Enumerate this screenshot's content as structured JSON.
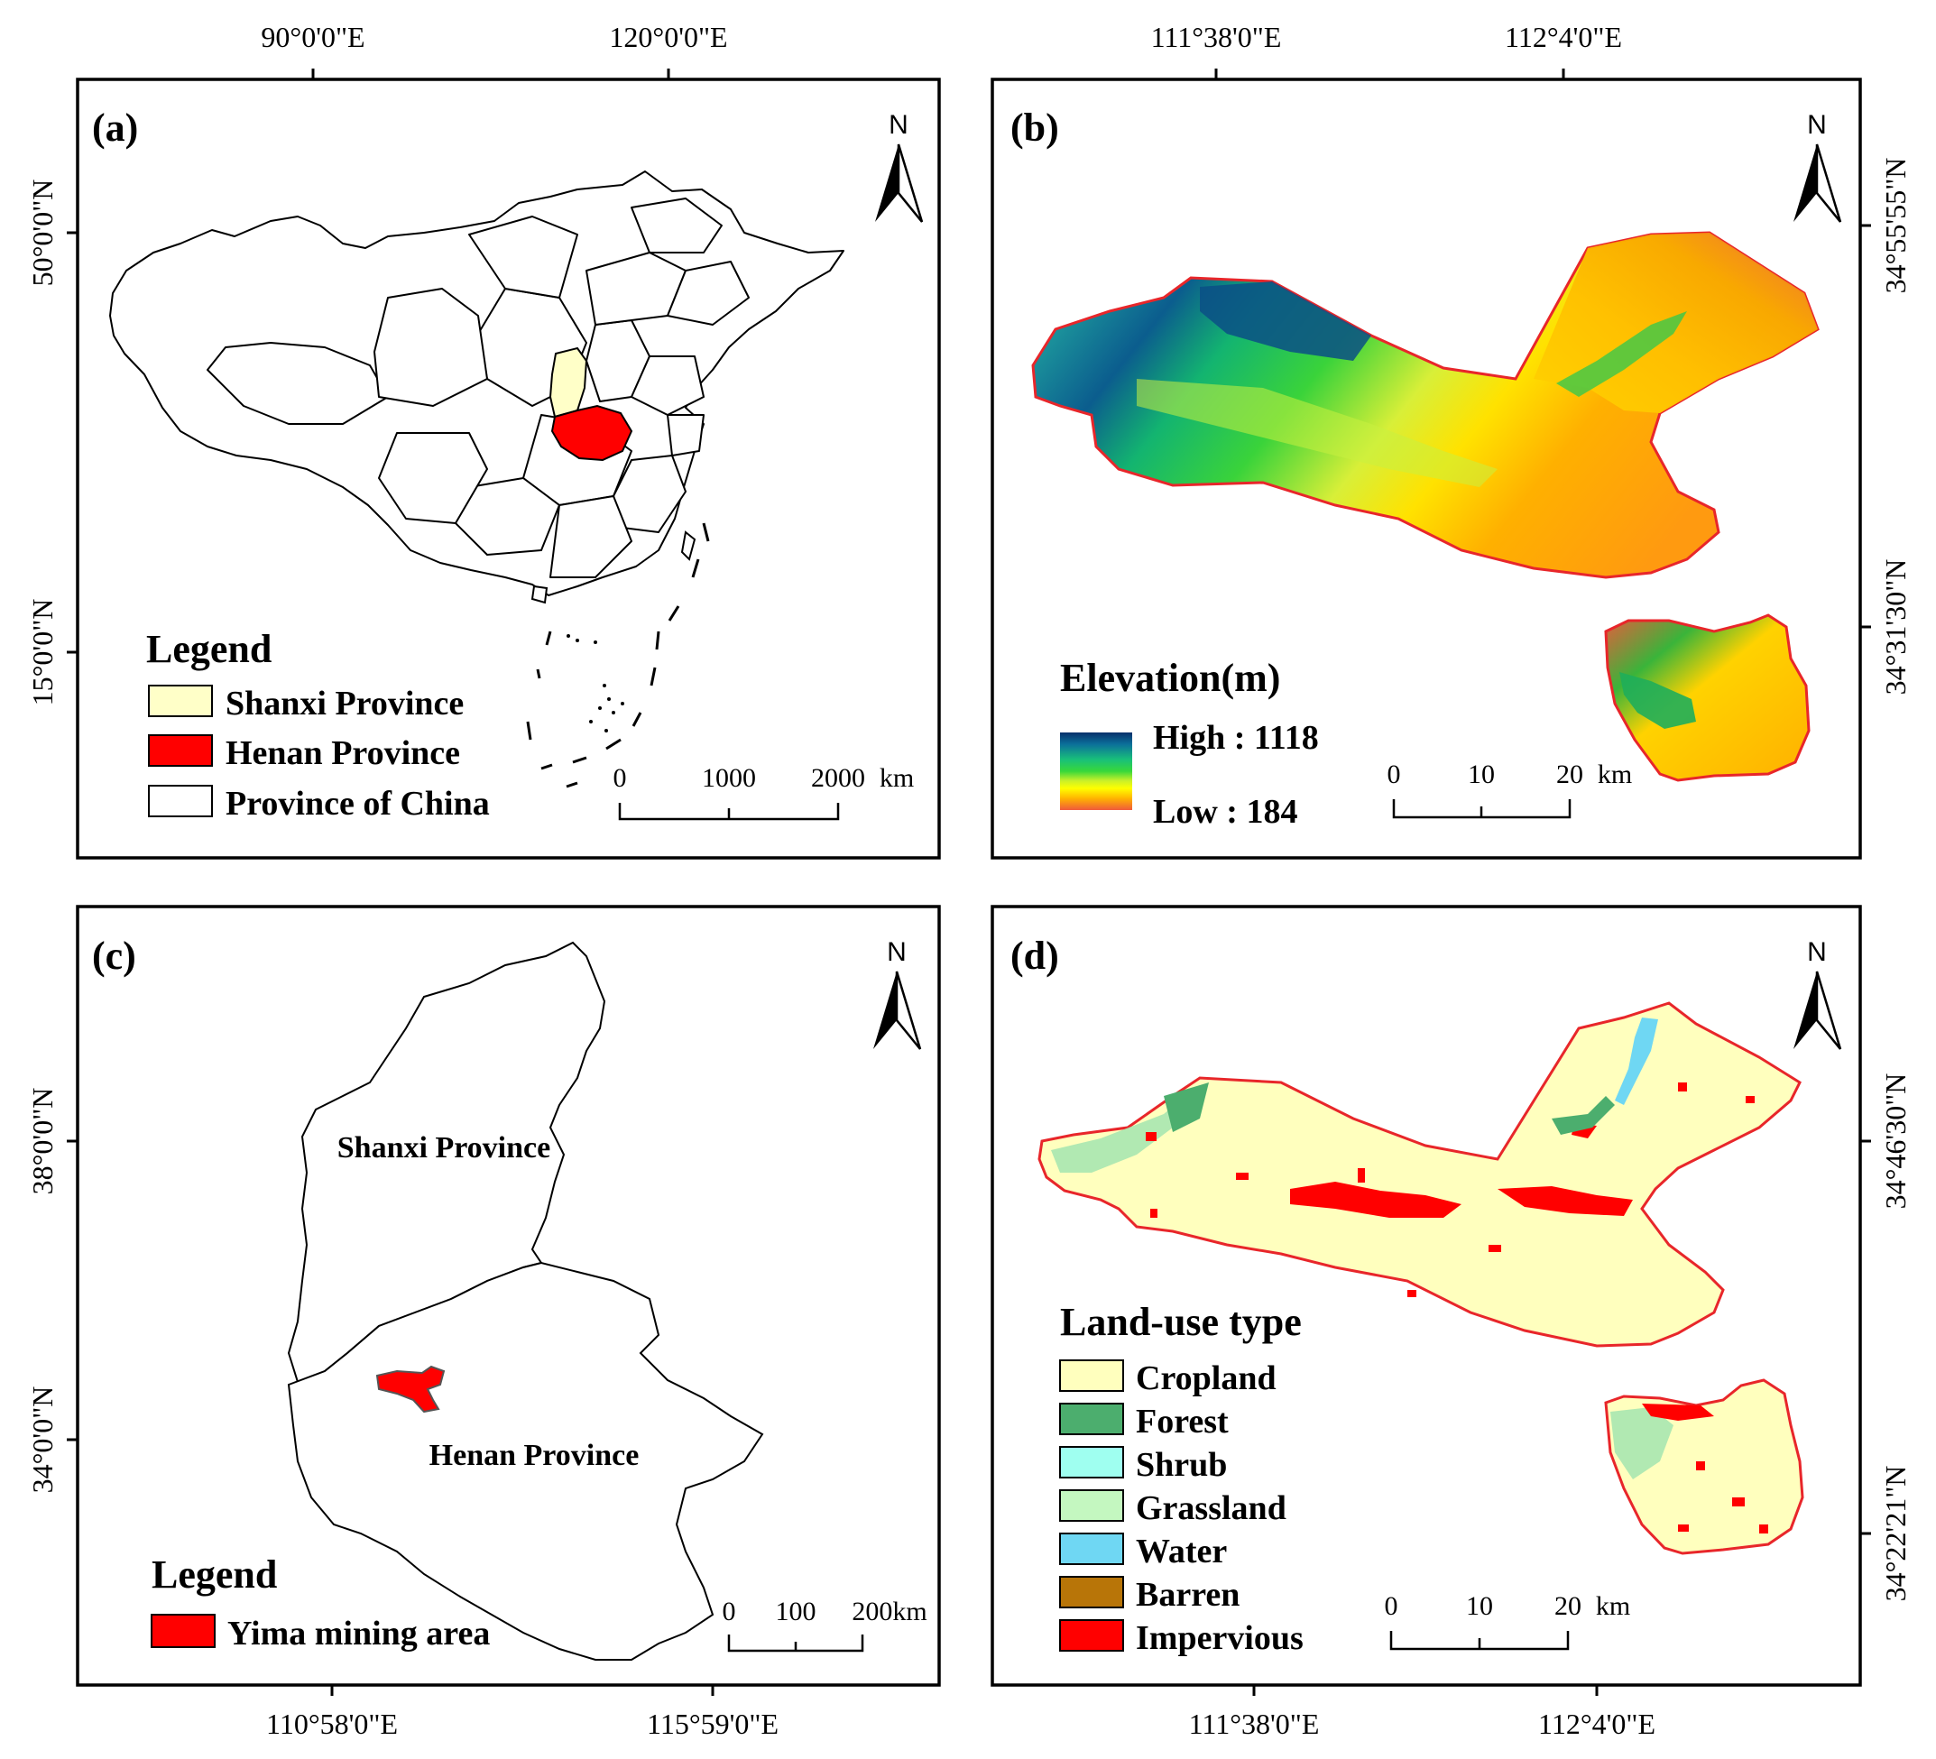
{
  "colors": {
    "shanxi": "#ffffc8",
    "henan": "#ff0000",
    "province": "#ffffff",
    "outline": "#e8262a",
    "cropland": "#ffffbe",
    "forest": "#4cae6e",
    "shrub": "#9ffff0",
    "grassland": "#c4f7c0",
    "water": "#6fd7f3",
    "barren": "#b87508",
    "impervious": "#ff0000"
  },
  "panel_a": {
    "label": "(a)",
    "north": "N",
    "top_ticks": [
      "90°0'0\"E",
      "120°0'0\"E"
    ],
    "left_ticks": [
      "50°0'0\"N",
      "15°0'0\"N"
    ],
    "legend": {
      "title": "Legend",
      "items": [
        {
          "label": "Shanxi Province",
          "color": "#ffffc8"
        },
        {
          "label": "Henan Province",
          "color": "#ff0000"
        },
        {
          "label": "Province of China",
          "color": "#ffffff"
        }
      ]
    },
    "scale": {
      "ticks": [
        "0",
        "1000",
        "2000"
      ],
      "unit": "km"
    }
  },
  "panel_b": {
    "label": "(b)",
    "north": "N",
    "top_ticks": [
      "111°38'0\"E",
      "112°4'0\"E"
    ],
    "right_ticks": [
      "34°55'55\"N",
      "34°31'30\"N"
    ],
    "legend": {
      "title": "Elevation(m)",
      "high": "High : 1118",
      "low": "Low : 184",
      "ramp": [
        "#08306b",
        "#0b7a9a",
        "#1ec07a",
        "#39d83a",
        "#b8f02a",
        "#ffff00",
        "#ffc000",
        "#ff7a1a",
        "#f05a3c"
      ]
    },
    "scale": {
      "ticks": [
        "0",
        "10",
        "20"
      ],
      "unit": "km"
    }
  },
  "panel_c": {
    "label": "(c)",
    "north": "N",
    "left_ticks": [
      "38°0'0\"N",
      "34°0'0\"N"
    ],
    "bottom_ticks": [
      "110°58'0\"E",
      "115°59'0\"E"
    ],
    "shanxi_label": "Shanxi Province",
    "henan_label": "Henan Province",
    "legend": {
      "title": "Legend",
      "items": [
        {
          "label": "Yima mining area",
          "color": "#ff0000"
        }
      ]
    },
    "scale": {
      "ticks": [
        "0",
        "100",
        "200km"
      ]
    }
  },
  "panel_d": {
    "label": "(d)",
    "north": "N",
    "right_ticks": [
      "34°46'30\"N",
      "34°22'21\"N"
    ],
    "bottom_ticks": [
      "111°38'0\"E",
      "112°4'0\"E"
    ],
    "legend": {
      "title": "Land-use type",
      "items": [
        {
          "label": "Cropland",
          "color": "#ffffbe"
        },
        {
          "label": "Forest",
          "color": "#4cae6e"
        },
        {
          "label": "Shrub",
          "color": "#9ffff0"
        },
        {
          "label": "Grassland",
          "color": "#c4f7c0"
        },
        {
          "label": "Water",
          "color": "#6fd7f3"
        },
        {
          "label": "Barren",
          "color": "#b87508"
        },
        {
          "label": "Impervious",
          "color": "#ff0000"
        }
      ]
    },
    "scale": {
      "ticks": [
        "0",
        "10",
        "20"
      ],
      "unit": "km"
    }
  }
}
